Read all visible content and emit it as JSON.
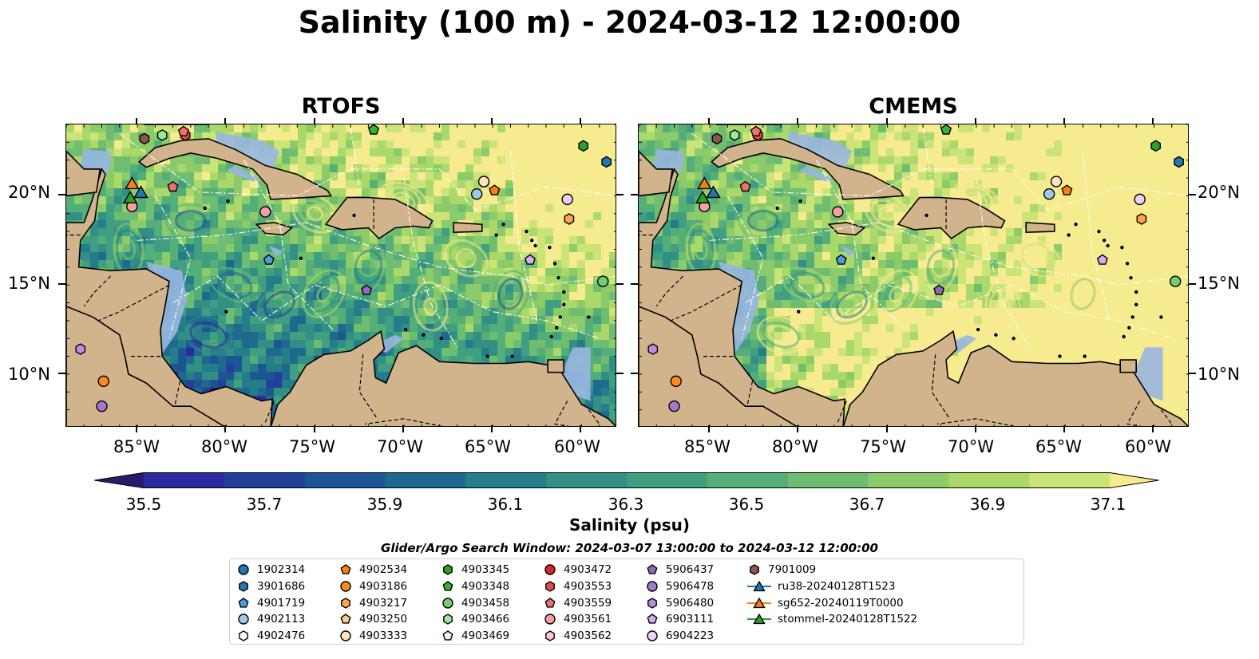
{
  "title": "Salinity (100 m) - 2024-03-12 12:00:00",
  "panels": [
    {
      "name": "RTOFS",
      "scheme": "rtofs"
    },
    {
      "name": "CMEMS",
      "scheme": "cmems"
    }
  ],
  "map_extent": {
    "lon": [
      -89,
      -58
    ],
    "lat": [
      7,
      24
    ]
  },
  "lon_ticks": [
    "85°W",
    "80°W",
    "75°W",
    "70°W",
    "65°W",
    "60°W"
  ],
  "lat_ticks": [
    "20°N",
    "15°N",
    "10°N"
  ],
  "colorbar": {
    "title": "Salinity (psu)",
    "min": 35.4,
    "max": 37.2,
    "step": 0.1,
    "tick_labels": [
      "35.5",
      "35.7",
      "35.9",
      "36.1",
      "36.3",
      "36.5",
      "36.7",
      "36.9",
      "37.1"
    ],
    "colors": [
      "#291a6b",
      "#2b2a9e",
      "#233f9c",
      "#1c5692",
      "#1d6a8e",
      "#257d89",
      "#328f84",
      "#3f9f80",
      "#54ae78",
      "#6ebd71",
      "#8ccb6a",
      "#aad869",
      "#cbe478",
      "#f6eb8e"
    ],
    "extend": "both"
  },
  "colors": {
    "land": "#d2b48c",
    "shelf": "#98b6e0",
    "pacific": "#2a1b6a"
  },
  "search_window": "Glider/Argo Search Window: 2024-03-07 13:00:00 to 2024-03-12 12:00:00",
  "legend": {
    "items": [
      {
        "label": "1902314",
        "shape": "circle",
        "color": "#1f77b4"
      },
      {
        "label": "3901686",
        "shape": "hexagon",
        "color": "#1f77b4"
      },
      {
        "label": "4901719",
        "shape": "pentagon",
        "color": "#4c9be0"
      },
      {
        "label": "4902113",
        "shape": "circle",
        "color": "#9ecae9"
      },
      {
        "label": "4902476",
        "shape": "hexagon",
        "color": "#ffffff"
      },
      {
        "label": "4902534",
        "shape": "pentagon",
        "color": "#ff7f0e"
      },
      {
        "label": "4903186",
        "shape": "circle",
        "color": "#ff8c1a"
      },
      {
        "label": "4903217",
        "shape": "hexagon",
        "color": "#ffa54a"
      },
      {
        "label": "4903250",
        "shape": "pentagon",
        "color": "#ffc68a"
      },
      {
        "label": "4903333",
        "shape": "circle",
        "color": "#ffe2c0"
      },
      {
        "label": "4903345",
        "shape": "hexagon",
        "color": "#2ca02c"
      },
      {
        "label": "4903348",
        "shape": "pentagon",
        "color": "#38b038"
      },
      {
        "label": "4903458",
        "shape": "circle",
        "color": "#6fd16f"
      },
      {
        "label": "4903466",
        "shape": "hexagon",
        "color": "#9ee89e"
      },
      {
        "label": "4903469",
        "shape": "pentagon",
        "color": "#dcffdc"
      },
      {
        "label": "4903472",
        "shape": "circle",
        "color": "#d62728"
      },
      {
        "label": "4903553",
        "shape": "hexagon",
        "color": "#e84a4a"
      },
      {
        "label": "4903559",
        "shape": "pentagon",
        "color": "#f07070"
      },
      {
        "label": "4903561",
        "shape": "circle",
        "color": "#f5a0a0"
      },
      {
        "label": "4903562",
        "shape": "hexagon",
        "color": "#fcc8c8"
      },
      {
        "label": "5906437",
        "shape": "pentagon",
        "color": "#9467bd"
      },
      {
        "label": "5906478",
        "shape": "circle",
        "color": "#a577d0"
      },
      {
        "label": "5906480",
        "shape": "hexagon",
        "color": "#b88ee0"
      },
      {
        "label": "6903111",
        "shape": "pentagon",
        "color": "#cfadf0"
      },
      {
        "label": "6904223",
        "shape": "circle",
        "color": "#ebd2fa"
      },
      {
        "label": "7901009",
        "shape": "hexagon",
        "color": "#8c564b"
      },
      {
        "label": "ru38-20240128T1523",
        "shape": "triangle-line",
        "color": "#1f77b4"
      },
      {
        "label": "sg652-20240119T0000",
        "shape": "triangle-line",
        "color": "#ff7f0e"
      },
      {
        "label": "stommel-20240128T1522",
        "shape": "triangle-line",
        "color": "#2ca02c"
      }
    ]
  },
  "markers": [
    {
      "label": "7901009",
      "lon": -84.6,
      "lat": 23.2
    },
    {
      "label": "4903466",
      "lon": -83.6,
      "lat": 23.4
    },
    {
      "label": "4903553",
      "lon": -82.3,
      "lat": 23.4
    },
    {
      "label": "4903559",
      "lon": -82.4,
      "lat": 23.6
    },
    {
      "label": "4903348",
      "lon": -71.7,
      "lat": 23.7
    },
    {
      "label": "4903345",
      "lon": -59.9,
      "lat": 22.8
    },
    {
      "label": "3901686",
      "lon": -58.6,
      "lat": 21.9
    },
    {
      "label": "4903559",
      "lon": -83.0,
      "lat": 20.5
    },
    {
      "label": "4903561",
      "lon": -85.3,
      "lat": 19.4
    },
    {
      "label": "4903561",
      "lon": -77.8,
      "lat": 19.1
    },
    {
      "label": "4903333",
      "lon": -65.5,
      "lat": 20.8
    },
    {
      "label": "4902113",
      "lon": -65.9,
      "lat": 20.1
    },
    {
      "label": "4902534",
      "lon": -64.9,
      "lat": 20.3
    },
    {
      "label": "6904223",
      "lon": -60.8,
      "lat": 19.8
    },
    {
      "label": "4903217",
      "lon": -60.7,
      "lat": 18.7
    },
    {
      "label": "4901719",
      "lon": -77.6,
      "lat": 16.4
    },
    {
      "label": "6903111",
      "lon": -62.9,
      "lat": 16.4
    },
    {
      "label": "5906437",
      "lon": -72.1,
      "lat": 14.7
    },
    {
      "label": "4903458",
      "lon": -58.8,
      "lat": 15.2
    },
    {
      "label": "5906480",
      "lon": -88.2,
      "lat": 11.4
    },
    {
      "label": "4903186",
      "lon": -86.9,
      "lat": 9.6
    },
    {
      "label": "5906478",
      "lon": -87.0,
      "lat": 8.2
    },
    {
      "label": "sg652-20240119T0000",
      "lon": -85.3,
      "lat": 20.7
    },
    {
      "label": "ru38-20240128T1523",
      "lon": -84.8,
      "lat": 20.2
    },
    {
      "label": "stommel-20240128T1522",
      "lon": -85.4,
      "lat": 19.9
    }
  ]
}
